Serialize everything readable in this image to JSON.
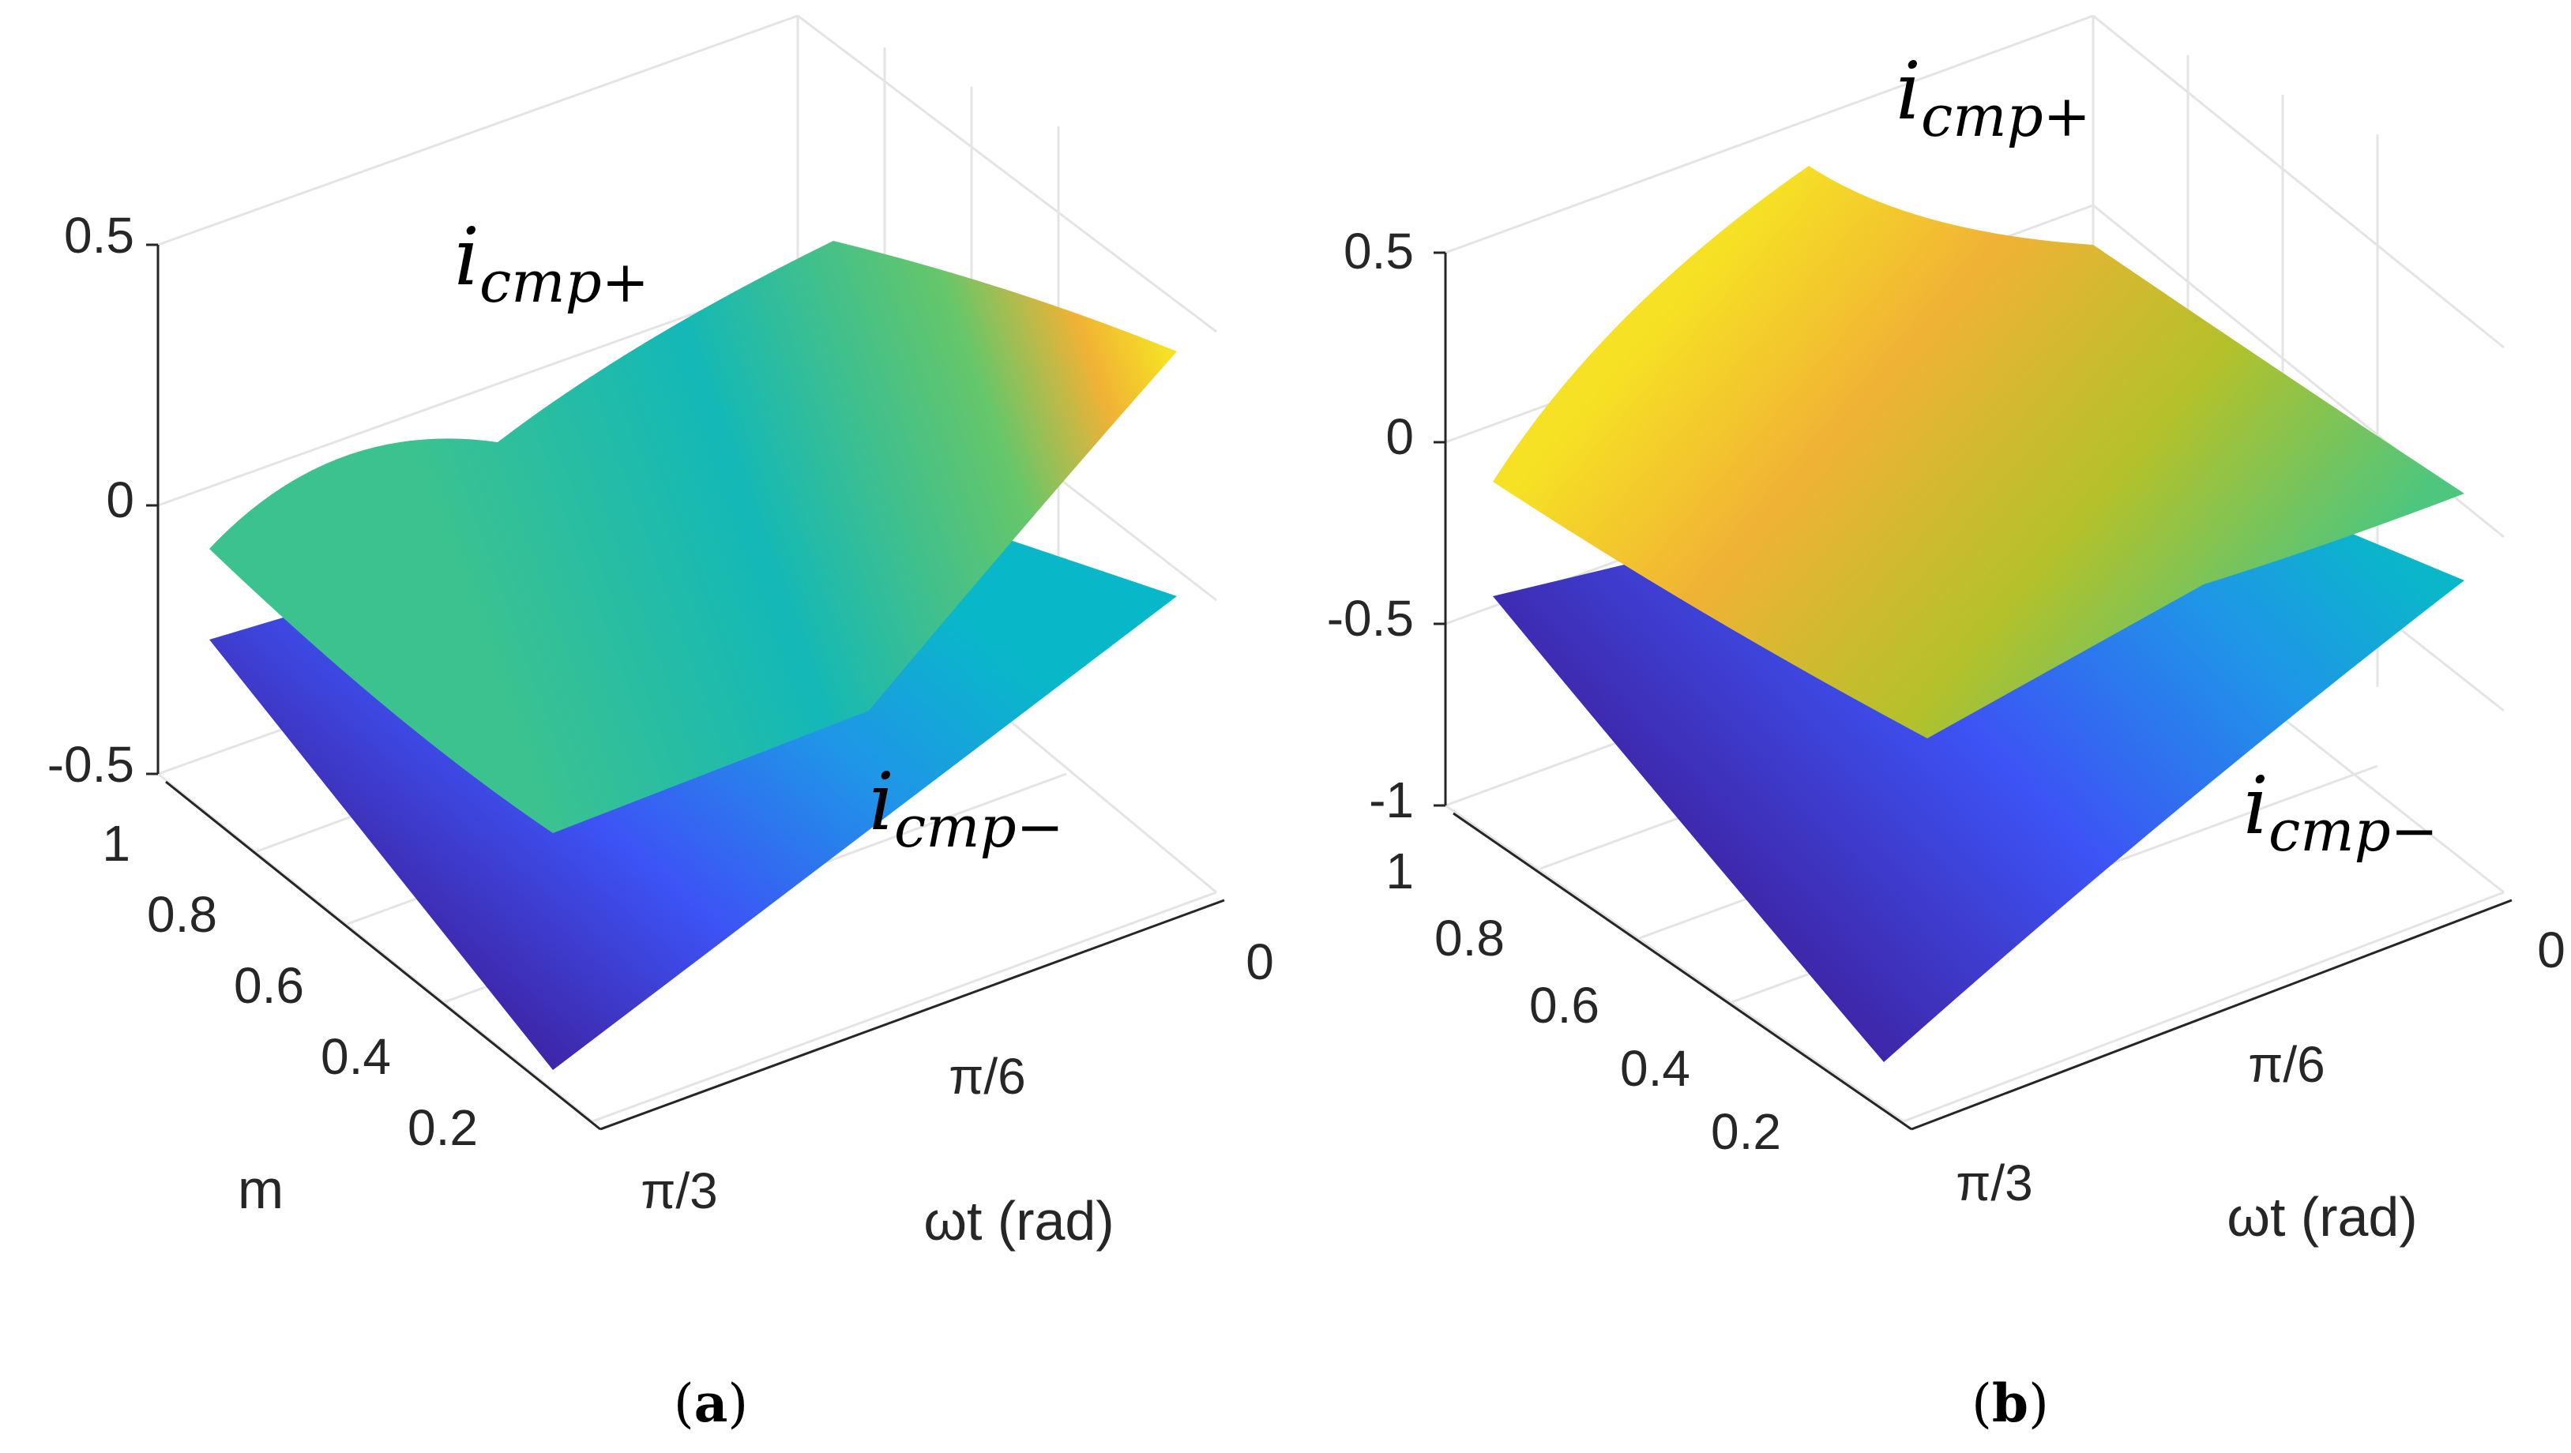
{
  "chart_data": [
    {
      "type": "surface",
      "panel_label": "a",
      "zlim": [
        -0.5,
        0.5
      ],
      "z_ticks": [
        "0.5",
        "0",
        "-0.5"
      ],
      "m_ticks": [
        "1",
        "0.8",
        "0.6",
        "0.4",
        "0.2"
      ],
      "m_label": "m",
      "wt_ticks": [
        "0",
        "π/6",
        "π/3"
      ],
      "wt_label": "ωt (rad)",
      "surfaces": [
        {
          "name_base": "i",
          "name_sub": "cmp+"
        },
        {
          "name_base": "i",
          "name_sub": "cmp−"
        }
      ]
    },
    {
      "type": "surface",
      "panel_label": "b",
      "zlim": [
        -1,
        0.5
      ],
      "z_ticks": [
        "0.5",
        "0",
        "-0.5",
        "-1"
      ],
      "m_ticks": [
        "1",
        "0.8",
        "0.6",
        "0.4",
        "0.2"
      ],
      "wt_ticks": [
        "0",
        "π/6",
        "π/3"
      ],
      "wt_label": "ωt (rad)",
      "surfaces": [
        {
          "name_base": "i",
          "name_sub": "cmp+"
        },
        {
          "name_base": "i",
          "name_sub": "cmp−"
        }
      ]
    }
  ],
  "colormap": [
    "#3e26a8",
    "#3d53f5",
    "#1f96e7",
    "#09b8c8",
    "#4fc67d",
    "#b4c12a",
    "#f0b235",
    "#f6e124"
  ]
}
